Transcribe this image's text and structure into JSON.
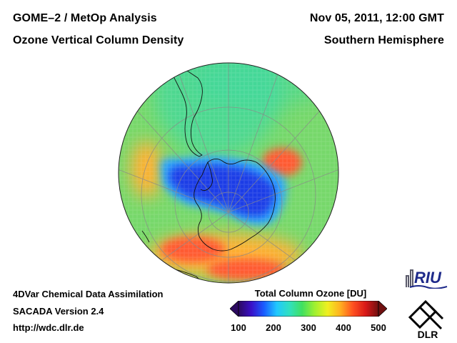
{
  "header": {
    "title_left": "GOME–2 / MetOp Analysis",
    "subtitle_left": "Ozone Vertical Column Density",
    "date": "Nov 05, 2011, 12:00 GMT",
    "hemisphere": "Southern Hemisphere"
  },
  "footer": {
    "line1": "4DVar Chemical Data Assimilation",
    "line2": "SACADA Version 2.4",
    "line3": "http://wdc.dlr.de"
  },
  "colorbar": {
    "title": "Total Column Ozone [DU]",
    "ticks": [
      "100",
      "200",
      "300",
      "400",
      "500"
    ],
    "min": 100,
    "max": 500,
    "stops": [
      "#2c0a60",
      "#3a10c8",
      "#1a5cff",
      "#20c8ff",
      "#30e0c0",
      "#40e060",
      "#a0f030",
      "#f0f020",
      "#ffb020",
      "#ff5020",
      "#d81818",
      "#701010"
    ]
  },
  "logos": {
    "riu": "RIU",
    "dlr": "DLR"
  },
  "map": {
    "projection": "orthographic, south polar",
    "ozone_hole_min_du": 160,
    "field_colors": {
      "background": "#76d86a",
      "outer": "#3cd8a0",
      "hole_core": "#1e3ee6",
      "hole_edge": "#2aa6ff",
      "collar": "#ffb030",
      "collar_peak": "#ff5a30"
    }
  }
}
